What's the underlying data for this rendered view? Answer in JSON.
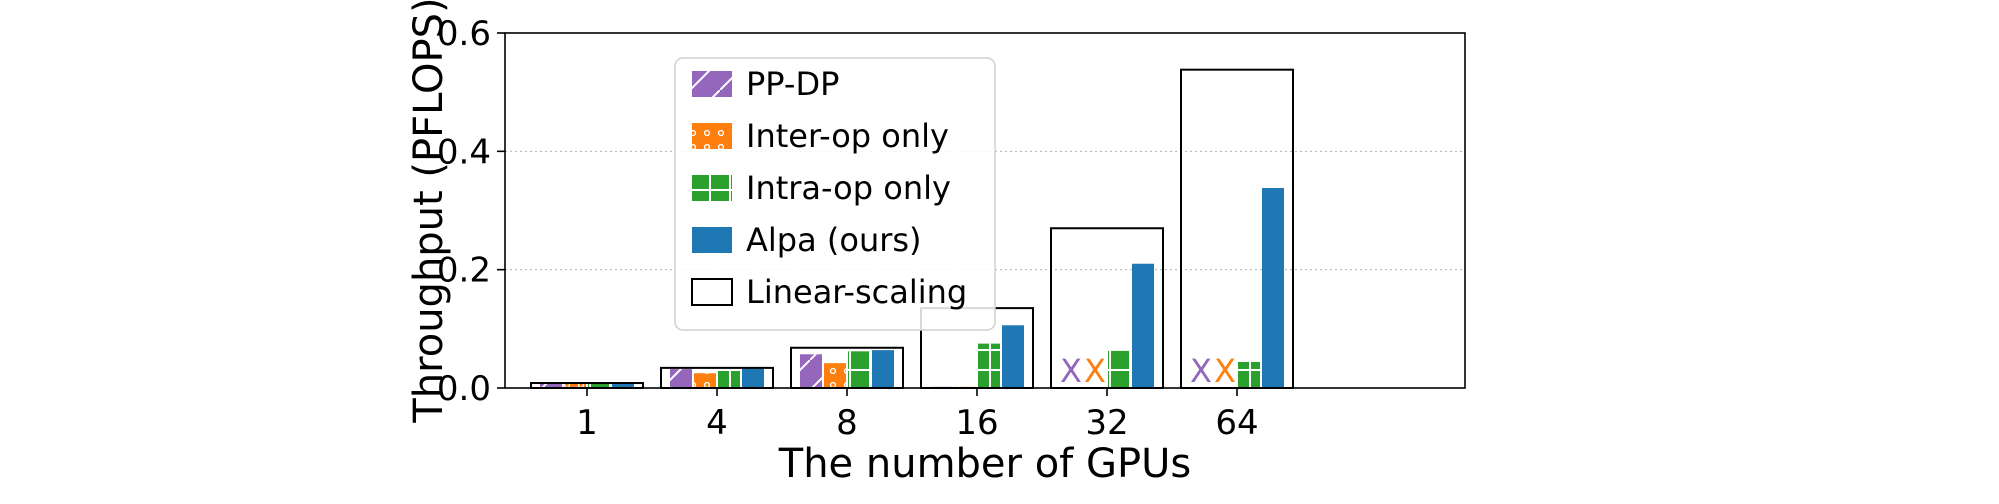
{
  "chart_data": {
    "type": "bar",
    "title": "",
    "xlabel": "The number of GPUs",
    "ylabel": "Throughput (PFLOPS)",
    "ylim": [
      0,
      0.6
    ],
    "yticks": [
      "0.0",
      "0.2",
      "0.4",
      "0.6"
    ],
    "grid": "y",
    "legend_position": "upper-left",
    "categories": [
      "1",
      "4",
      "8",
      "16",
      "32",
      "64"
    ],
    "series": [
      {
        "name": "PP-DP",
        "color": "#9467bd",
        "hatch": "diagonal",
        "values": [
          0.008,
          0.032,
          0.057,
          0.002,
          null,
          null
        ],
        "failed_marker": "X"
      },
      {
        "name": "Inter-op only",
        "color": "#ff7f0e",
        "hatch": "dots",
        "values": [
          0.008,
          0.025,
          0.042,
          0.002,
          null,
          null
        ],
        "failed_marker": "X"
      },
      {
        "name": "Intra-op only",
        "color": "#2ca02c",
        "hatch": "grid",
        "values": [
          0.008,
          0.032,
          0.062,
          0.075,
          0.063,
          0.044
        ]
      },
      {
        "name": "Alpa (ours)",
        "color": "#1f77b4",
        "hatch": "none",
        "values": [
          0.008,
          0.033,
          0.064,
          0.106,
          0.21,
          0.338
        ]
      }
    ],
    "linear_scaling": {
      "name": "Linear-scaling",
      "values": [
        0.0084,
        0.034,
        0.068,
        0.135,
        0.27,
        0.538
      ]
    }
  }
}
